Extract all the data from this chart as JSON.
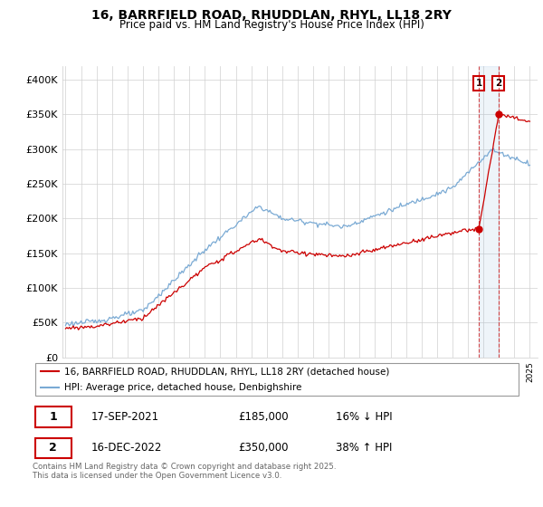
{
  "title": "16, BARRFIELD ROAD, RHUDDLAN, RHYL, LL18 2RY",
  "subtitle": "Price paid vs. HM Land Registry's House Price Index (HPI)",
  "ylim": [
    0,
    420000
  ],
  "yticks": [
    0,
    50000,
    100000,
    150000,
    200000,
    250000,
    300000,
    350000,
    400000
  ],
  "ytick_labels": [
    "£0",
    "£50K",
    "£100K",
    "£150K",
    "£200K",
    "£250K",
    "£300K",
    "£350K",
    "£400K"
  ],
  "legend_entry1": "16, BARRFIELD ROAD, RHUDDLAN, RHYL, LL18 2RY (detached house)",
  "legend_entry2": "HPI: Average price, detached house, Denbighshire",
  "sale1_date": "17-SEP-2021",
  "sale1_price": "£185,000",
  "sale1_hpi": "16% ↓ HPI",
  "sale2_date": "16-DEC-2022",
  "sale2_price": "£350,000",
  "sale2_hpi": "38% ↑ HPI",
  "footer": "Contains HM Land Registry data © Crown copyright and database right 2025.\nThis data is licensed under the Open Government Licence v3.0.",
  "red_color": "#cc0000",
  "blue_color": "#7aaad4",
  "sale1_year": 2021.708,
  "sale2_year": 2022.958,
  "sale1_price_val": 185000,
  "sale2_price_val": 350000
}
